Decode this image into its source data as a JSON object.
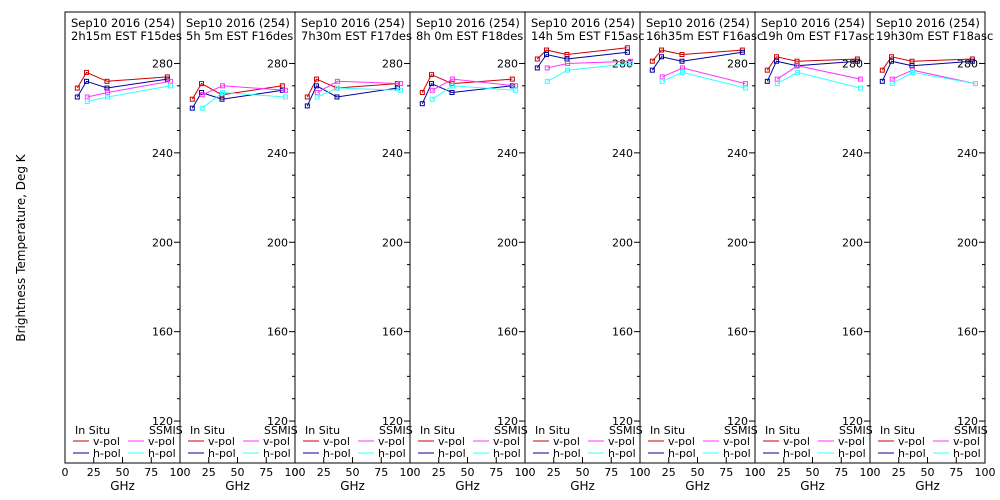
{
  "figure": {
    "ylabel": "Brightness Temperature, Deg K",
    "xlabel": "GHz"
  },
  "chart_data": [
    {
      "type": "line",
      "title": "Sep10 2016 (254)",
      "subtitle": "2h15m  EST  F15des",
      "xlabel": "GHz",
      "ylabel": "Brightness Temperature, Deg K",
      "xlim": [
        0,
        100
      ],
      "ylim": [
        110,
        290
      ],
      "xticks": [
        0,
        25,
        50,
        75,
        100
      ],
      "yticks": [
        120,
        160,
        200,
        240,
        280
      ],
      "grid": false,
      "legend": {
        "groups": [
          "In Situ",
          "SSMIS"
        ],
        "entries": [
          "v-pol",
          "h-pol",
          "v-pol",
          "h-pol"
        ]
      },
      "series": [
        {
          "name": "In Situ v-pol",
          "color": "#cc0000",
          "x": [
            10.7,
            18.7,
            36.5,
            89
          ],
          "y": [
            269,
            276,
            272,
            274
          ]
        },
        {
          "name": "In Situ h-pol",
          "color": "#000099",
          "x": [
            10.7,
            18.7,
            36.5,
            89
          ],
          "y": [
            265,
            272,
            269,
            273
          ]
        },
        {
          "name": "SSMIS v-pol",
          "color": "#ff33ff",
          "x": [
            19.35,
            37,
            91.66
          ],
          "y": [
            265,
            267,
            272
          ]
        },
        {
          "name": "SSMIS h-pol",
          "color": "#33ffff",
          "x": [
            19.35,
            37,
            91.66
          ],
          "y": [
            263,
            265,
            270
          ]
        }
      ]
    },
    {
      "type": "line",
      "title": "Sep10 2016 (254)",
      "subtitle": "5h 5m  EST  F16des",
      "xlabel": "GHz",
      "ylabel": "Brightness Temperature, Deg K",
      "xlim": [
        0,
        100
      ],
      "ylim": [
        110,
        290
      ],
      "xticks": [
        0,
        25,
        50,
        75,
        100
      ],
      "yticks": [
        120,
        160,
        200,
        240,
        280
      ],
      "grid": false,
      "legend": {
        "groups": [
          "In Situ",
          "SSMIS"
        ],
        "entries": [
          "v-pol",
          "h-pol",
          "v-pol",
          "h-pol"
        ]
      },
      "series": [
        {
          "name": "In Situ v-pol",
          "color": "#cc0000",
          "x": [
            10.7,
            18.7,
            36.5,
            89
          ],
          "y": [
            264,
            271,
            266,
            270
          ]
        },
        {
          "name": "In Situ h-pol",
          "color": "#000099",
          "x": [
            10.7,
            18.7,
            36.5,
            89
          ],
          "y": [
            260,
            267,
            264,
            268
          ]
        },
        {
          "name": "SSMIS v-pol",
          "color": "#ff33ff",
          "x": [
            19.35,
            37,
            91.66
          ],
          "y": [
            266,
            270,
            268
          ]
        },
        {
          "name": "SSMIS h-pol",
          "color": "#33ffff",
          "x": [
            19.35,
            37,
            91.66
          ],
          "y": [
            260,
            267,
            265
          ]
        }
      ]
    },
    {
      "type": "line",
      "title": "Sep10 2016 (254)",
      "subtitle": "7h30m  EST  F17des",
      "xlabel": "GHz",
      "ylabel": "Brightness Temperature, Deg K",
      "xlim": [
        0,
        100
      ],
      "ylim": [
        110,
        290
      ],
      "xticks": [
        0,
        25,
        50,
        75,
        100
      ],
      "yticks": [
        120,
        160,
        200,
        240,
        280
      ],
      "grid": false,
      "legend": {
        "groups": [
          "In Situ",
          "SSMIS"
        ],
        "entries": [
          "v-pol",
          "h-pol",
          "v-pol",
          "h-pol"
        ]
      },
      "series": [
        {
          "name": "In Situ v-pol",
          "color": "#cc0000",
          "x": [
            10.7,
            18.7,
            36.5,
            89
          ],
          "y": [
            265,
            273,
            269,
            271
          ]
        },
        {
          "name": "In Situ h-pol",
          "color": "#000099",
          "x": [
            10.7,
            18.7,
            36.5,
            89
          ],
          "y": [
            261,
            270,
            265,
            269
          ]
        },
        {
          "name": "SSMIS v-pol",
          "color": "#ff33ff",
          "x": [
            19.35,
            37,
            91.66
          ],
          "y": [
            267,
            272,
            271
          ]
        },
        {
          "name": "SSMIS h-pol",
          "color": "#33ffff",
          "x": [
            19.35,
            37,
            91.66
          ],
          "y": [
            265,
            269,
            268
          ]
        }
      ]
    },
    {
      "type": "line",
      "title": "Sep10 2016 (254)",
      "subtitle": "8h 0m  EST  F18des",
      "xlabel": "GHz",
      "ylabel": "Brightness Temperature, Deg K",
      "xlim": [
        0,
        100
      ],
      "ylim": [
        110,
        290
      ],
      "xticks": [
        0,
        25,
        50,
        75,
        100
      ],
      "yticks": [
        120,
        160,
        200,
        240,
        280
      ],
      "grid": false,
      "legend": {
        "groups": [
          "In Situ",
          "SSMIS"
        ],
        "entries": [
          "v-pol",
          "h-pol",
          "v-pol",
          "h-pol"
        ]
      },
      "series": [
        {
          "name": "In Situ v-pol",
          "color": "#cc0000",
          "x": [
            10.7,
            18.7,
            36.5,
            89
          ],
          "y": [
            267,
            275,
            271,
            273
          ]
        },
        {
          "name": "In Situ h-pol",
          "color": "#000099",
          "x": [
            10.7,
            18.7,
            36.5,
            89
          ],
          "y": [
            262,
            271,
            267,
            270
          ]
        },
        {
          "name": "SSMIS v-pol",
          "color": "#ff33ff",
          "x": [
            19.35,
            37,
            91.66
          ],
          "y": [
            268,
            273,
            270
          ]
        },
        {
          "name": "SSMIS h-pol",
          "color": "#33ffff",
          "x": [
            19.35,
            37,
            91.66
          ],
          "y": [
            264,
            270,
            268
          ]
        }
      ]
    },
    {
      "type": "line",
      "title": "Sep10 2016 (254)",
      "subtitle": "14h 5m  EST  F15asc",
      "xlabel": "GHz",
      "ylabel": "Brightness Temperature, Deg K",
      "xlim": [
        0,
        100
      ],
      "ylim": [
        110,
        290
      ],
      "xticks": [
        0,
        25,
        50,
        75,
        100
      ],
      "yticks": [
        120,
        160,
        200,
        240,
        280
      ],
      "grid": false,
      "legend": {
        "groups": [
          "In Situ",
          "SSMIS"
        ],
        "entries": [
          "v-pol",
          "h-pol",
          "v-pol",
          "h-pol"
        ]
      },
      "series": [
        {
          "name": "In Situ v-pol",
          "color": "#cc0000",
          "x": [
            10.7,
            18.7,
            36.5,
            89
          ],
          "y": [
            282,
            286,
            284,
            287
          ]
        },
        {
          "name": "In Situ h-pol",
          "color": "#000099",
          "x": [
            10.7,
            18.7,
            36.5,
            89
          ],
          "y": [
            278,
            284,
            282,
            285
          ]
        },
        {
          "name": "SSMIS v-pol",
          "color": "#ff33ff",
          "x": [
            19.35,
            37,
            91.66
          ],
          "y": [
            278,
            280,
            281
          ]
        },
        {
          "name": "SSMIS h-pol",
          "color": "#33ffff",
          "x": [
            19.35,
            37,
            91.66
          ],
          "y": [
            272,
            277,
            280
          ]
        }
      ]
    },
    {
      "type": "line",
      "title": "Sep10 2016 (254)",
      "subtitle": "16h35m  EST  F16asc",
      "xlabel": "GHz",
      "ylabel": "Brightness Temperature, Deg K",
      "xlim": [
        0,
        100
      ],
      "ylim": [
        110,
        290
      ],
      "xticks": [
        0,
        25,
        50,
        75,
        100
      ],
      "yticks": [
        120,
        160,
        200,
        240,
        280
      ],
      "grid": false,
      "legend": {
        "groups": [
          "In Situ",
          "SSMIS"
        ],
        "entries": [
          "v-pol",
          "h-pol",
          "v-pol",
          "h-pol"
        ]
      },
      "series": [
        {
          "name": "In Situ v-pol",
          "color": "#cc0000",
          "x": [
            10.7,
            18.7,
            36.5,
            89
          ],
          "y": [
            281,
            286,
            284,
            286
          ]
        },
        {
          "name": "In Situ h-pol",
          "color": "#000099",
          "x": [
            10.7,
            18.7,
            36.5,
            89
          ],
          "y": [
            277,
            283,
            281,
            285
          ]
        },
        {
          "name": "SSMIS v-pol",
          "color": "#ff33ff",
          "x": [
            19.35,
            37,
            91.66
          ],
          "y": [
            274,
            278,
            271
          ]
        },
        {
          "name": "SSMIS h-pol",
          "color": "#33ffff",
          "x": [
            19.35,
            37,
            91.66
          ],
          "y": [
            272,
            276,
            269
          ]
        }
      ]
    },
    {
      "type": "line",
      "title": "Sep10 2016 (254)",
      "subtitle": "19h 0m  EST  F17asc",
      "xlabel": "GHz",
      "ylabel": "Brightness Temperature, Deg K",
      "xlim": [
        0,
        100
      ],
      "ylim": [
        110,
        290
      ],
      "xticks": [
        0,
        25,
        50,
        75,
        100
      ],
      "yticks": [
        120,
        160,
        200,
        240,
        280
      ],
      "grid": false,
      "legend": {
        "groups": [
          "In Situ",
          "SSMIS"
        ],
        "entries": [
          "v-pol",
          "h-pol",
          "v-pol",
          "h-pol"
        ]
      },
      "series": [
        {
          "name": "In Situ v-pol",
          "color": "#cc0000",
          "x": [
            10.7,
            18.7,
            36.5,
            89
          ],
          "y": [
            277,
            283,
            281,
            282
          ]
        },
        {
          "name": "In Situ h-pol",
          "color": "#000099",
          "x": [
            10.7,
            18.7,
            36.5,
            89
          ],
          "y": [
            272,
            281,
            279,
            281
          ]
        },
        {
          "name": "SSMIS v-pol",
          "color": "#ff33ff",
          "x": [
            19.35,
            37,
            91.66
          ],
          "y": [
            273,
            279,
            273
          ]
        },
        {
          "name": "SSMIS h-pol",
          "color": "#33ffff",
          "x": [
            19.35,
            37,
            91.66
          ],
          "y": [
            271,
            276,
            269
          ]
        }
      ]
    },
    {
      "type": "line",
      "title": "Sep10 2016 (254)",
      "subtitle": "19h30m  EST  F18asc",
      "xlabel": "GHz",
      "ylabel": "Brightness Temperature, Deg K",
      "xlim": [
        0,
        100
      ],
      "ylim": [
        110,
        290
      ],
      "xticks": [
        0,
        25,
        50,
        75,
        100
      ],
      "yticks": [
        120,
        160,
        200,
        240,
        280
      ],
      "grid": false,
      "legend": {
        "groups": [
          "In Situ",
          "SSMIS"
        ],
        "entries": [
          "v-pol",
          "h-pol",
          "v-pol",
          "h-pol"
        ]
      },
      "series": [
        {
          "name": "In Situ v-pol",
          "color": "#cc0000",
          "x": [
            10.7,
            18.7,
            36.5,
            89
          ],
          "y": [
            277,
            283,
            281,
            282
          ]
        },
        {
          "name": "In Situ h-pol",
          "color": "#000099",
          "x": [
            10.7,
            18.7,
            36.5,
            89
          ],
          "y": [
            272,
            281,
            279,
            281
          ]
        },
        {
          "name": "SSMIS v-pol",
          "color": "#ff33ff",
          "x": [
            19.35,
            37,
            91.66
          ],
          "y": [
            273,
            277,
            271
          ]
        },
        {
          "name": "SSMIS h-pol",
          "color": "#33ffff",
          "x": [
            19.35,
            37,
            91.66
          ],
          "y": [
            271,
            276,
            271
          ]
        }
      ]
    }
  ]
}
